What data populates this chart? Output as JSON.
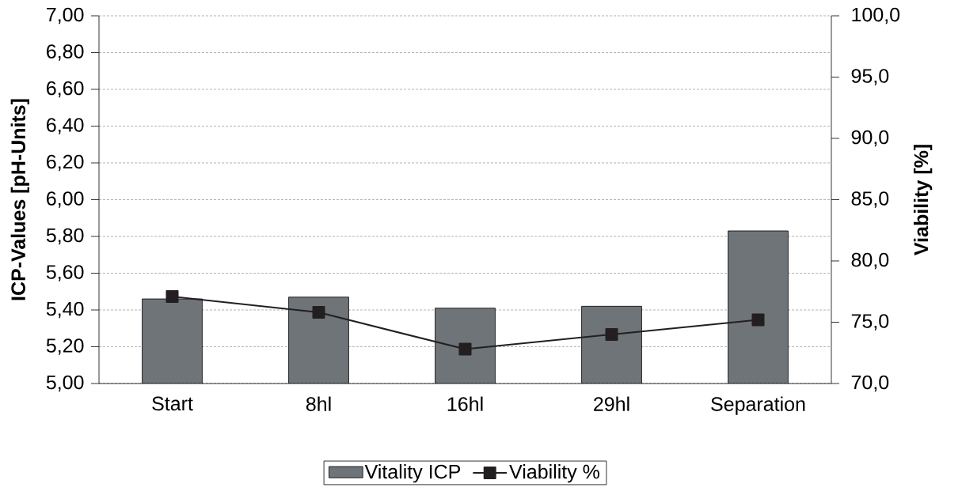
{
  "chart_data": {
    "type": "bar",
    "categories": [
      "Start",
      "8hl",
      "16hl",
      "29hl",
      "Separation"
    ],
    "series": [
      {
        "name": "Vitality ICP",
        "color": "#6e7478",
        "values": [
          5.46,
          5.47,
          5.41,
          5.42,
          5.83
        ]
      },
      {
        "name": "Viability %",
        "type": "line",
        "axis": "y2",
        "color": "#231f20",
        "values": [
          77.1,
          75.8,
          72.8,
          74.0,
          75.2
        ]
      }
    ],
    "ylabel": "ICP-Values [pH-Units]",
    "y2label": "Viability [%]",
    "ylim": [
      5,
      7
    ],
    "yticks": [
      {
        "value": 5,
        "label": "5,00"
      },
      {
        "value": 5.2,
        "label": "5,20"
      },
      {
        "value": 5.4,
        "label": "5,40"
      },
      {
        "value": 5.6,
        "label": "5,60"
      },
      {
        "value": 5.8,
        "label": "5,80"
      },
      {
        "value": 6,
        "label": "6,00"
      },
      {
        "value": 6.2,
        "label": "6,20"
      },
      {
        "value": 6.4,
        "label": "6,40"
      },
      {
        "value": 6.6,
        "label": "6,60"
      },
      {
        "value": 6.8,
        "label": "6,80"
      },
      {
        "value": 7,
        "label": "7,00"
      }
    ],
    "y2lim": [
      70,
      100
    ],
    "y2ticks": [
      {
        "value": 70,
        "label": "70,0"
      },
      {
        "value": 75,
        "label": "75,0"
      },
      {
        "value": 80,
        "label": "80,0"
      },
      {
        "value": 85,
        "label": "85,0"
      },
      {
        "value": 90,
        "label": "90,0"
      },
      {
        "value": 95,
        "label": "95,0"
      },
      {
        "value": 100,
        "label": "100,0"
      }
    ],
    "grid": "y",
    "legend": "bottom",
    "marker": "square"
  }
}
